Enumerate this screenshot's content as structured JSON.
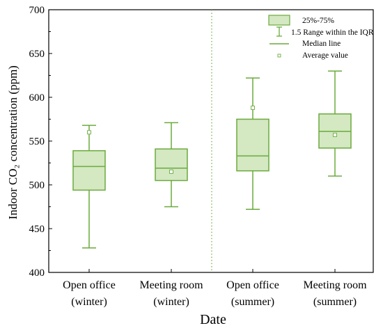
{
  "chart_data": {
    "type": "box",
    "xlabel": "Date",
    "ylabel": "Indoor CO₂ concentration (ppm)",
    "ylim": [
      400,
      700
    ],
    "yticks": [
      400,
      450,
      500,
      550,
      600,
      650,
      700
    ],
    "categories": [
      [
        "Open office",
        "(winter)"
      ],
      [
        "Meeting room",
        "(winter)"
      ],
      [
        "Open office",
        "(summer)"
      ],
      [
        "Meeting room",
        "(summer)"
      ]
    ],
    "boxes": [
      {
        "whisker_low": 428,
        "q1": 494,
        "median": 521,
        "q3": 539,
        "whisker_high": 568,
        "mean": 560
      },
      {
        "whisker_low": 475,
        "q1": 505,
        "median": 519,
        "q3": 541,
        "whisker_high": 571,
        "mean": 515
      },
      {
        "whisker_low": 472,
        "q1": 516,
        "median": 533,
        "q3": 575,
        "whisker_high": 622,
        "mean": 588
      },
      {
        "whisker_low": 510,
        "q1": 542,
        "median": 561,
        "q3": 581,
        "whisker_high": 630,
        "mean": 557
      }
    ],
    "legend": {
      "position": "top-right",
      "entries": [
        "25%-75%",
        "1.5 Range within the IQR",
        "Median line",
        "Average value"
      ]
    },
    "separator": "dotted vertical line between winter and summer groups",
    "colors": {
      "box_stroke": "#6aaa3c",
      "box_fill": "#d4e8c2",
      "axis": "#000000",
      "separator": "#6aaa3c"
    }
  }
}
